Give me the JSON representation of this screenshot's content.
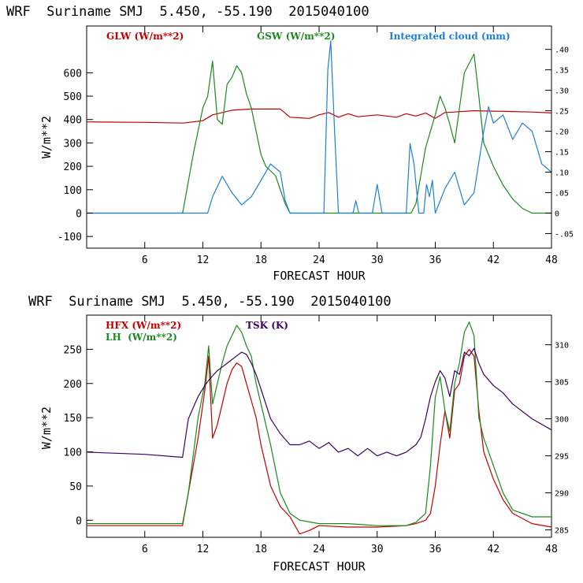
{
  "colors": {
    "red": "#c00000",
    "green": "#1a8a1a",
    "blue": "#1f7fd0",
    "purple": "#3d0060",
    "axis": "#000000"
  },
  "chart_data": [
    {
      "type": "line",
      "title": "WRF  Suriname SMJ  5.450, -55.190  2015040100",
      "xlabel": "FORECAST HOUR",
      "ylabel": "W/m**2",
      "xlim": [
        0,
        48
      ],
      "ylim": [
        -150,
        800
      ],
      "xticks": [
        6,
        12,
        18,
        24,
        30,
        36,
        42,
        48
      ],
      "yticks": [
        -100,
        0,
        100,
        200,
        300,
        400,
        500,
        600
      ],
      "y2lim": [
        -0.0857,
        0.4571
      ],
      "y2ticks": [
        -0.05,
        0,
        0.05,
        0.1,
        0.15,
        0.2,
        0.25,
        0.3,
        0.35,
        0.4
      ],
      "y2ticklabels": [
        "-.05",
        "0",
        ".05",
        ".10",
        ".15",
        ".20",
        ".25",
        ".30",
        ".35",
        ".40"
      ],
      "series": [
        {
          "name": "GLW (W/m**2)",
          "color": "red",
          "axis": "left",
          "x": [
            0,
            6,
            10,
            12,
            13,
            15,
            17,
            20,
            21,
            23,
            24,
            25,
            26,
            27,
            28,
            30,
            32,
            33,
            34,
            35,
            36,
            37,
            38,
            40,
            42,
            44,
            46,
            48
          ],
          "y": [
            390,
            388,
            385,
            395,
            420,
            440,
            445,
            445,
            410,
            405,
            420,
            430,
            410,
            425,
            412,
            420,
            410,
            425,
            415,
            428,
            405,
            430,
            432,
            438,
            436,
            434,
            432,
            428
          ]
        },
        {
          "name": "GSW (W/m**2)",
          "color": "green",
          "axis": "left",
          "x": [
            0,
            9.9,
            10,
            11,
            12,
            12.5,
            13,
            13.5,
            14,
            14.5,
            15,
            15.5,
            16,
            16.5,
            17,
            17.5,
            18,
            18.5,
            19,
            19.5,
            20,
            20.5,
            21,
            33.5,
            34,
            35,
            36,
            36.5,
            37,
            37.5,
            38,
            38.5,
            39,
            39.5,
            40,
            40.5,
            41,
            42,
            43,
            44,
            45,
            46,
            48
          ],
          "y": [
            0,
            0,
            20,
            250,
            450,
            500,
            650,
            400,
            380,
            550,
            580,
            630,
            600,
            510,
            450,
            350,
            250,
            200,
            180,
            160,
            100,
            40,
            0,
            0,
            40,
            280,
            420,
            500,
            450,
            380,
            300,
            450,
            600,
            640,
            680,
            500,
            300,
            200,
            120,
            60,
            20,
            0,
            0
          ]
        },
        {
          "name": "Integrated cloud (mm)",
          "color": "blue",
          "axis": "right",
          "x": [
            0,
            12.5,
            13,
            14,
            15,
            16,
            17,
            18,
            19,
            20,
            20.5,
            21,
            24.5,
            24.9,
            25.2,
            25.6,
            26,
            27.5,
            27.8,
            28.1,
            29.5,
            30,
            30.5,
            33,
            33.4,
            33.8,
            34.3,
            34.8,
            35.1,
            35.4,
            35.7,
            36,
            37,
            38,
            39,
            40,
            41,
            41.5,
            42,
            43,
            44,
            45,
            46,
            47,
            48
          ],
          "y": [
            0,
            0,
            0.04,
            0.09,
            0.05,
            0.02,
            0.04,
            0.08,
            0.12,
            0.1,
            0.03,
            0,
            0,
            0.35,
            0.42,
            0.2,
            0,
            0,
            0.03,
            0,
            0,
            0.07,
            0,
            0,
            0.17,
            0.12,
            0,
            0,
            0.07,
            0.04,
            0.08,
            0,
            0.06,
            0.1,
            0.02,
            0.05,
            0.2,
            0.26,
            0.22,
            0.24,
            0.18,
            0.22,
            0.2,
            0.12,
            0.1
          ]
        }
      ]
    },
    {
      "type": "line",
      "title": "WRF  Suriname SMJ  5.450, -55.190  2015040100",
      "xlabel": "FORECAST HOUR",
      "ylabel": "W/m**2",
      "xlim": [
        0,
        48
      ],
      "ylim": [
        -25,
        300
      ],
      "xticks": [
        6,
        12,
        18,
        24,
        30,
        36,
        42,
        48
      ],
      "yticks": [
        0,
        50,
        100,
        150,
        200,
        250
      ],
      "y2lim": [
        284,
        314
      ],
      "y2ticks": [
        285,
        290,
        295,
        300,
        305,
        310
      ],
      "series": [
        {
          "name": "HFX (W/m**2)",
          "color": "red",
          "axis": "left",
          "x": [
            0,
            6,
            9.9,
            10.5,
            11.5,
            12.2,
            12.6,
            13,
            13.5,
            14,
            14.5,
            15,
            15.5,
            16,
            16.5,
            17,
            17.5,
            18,
            19,
            20,
            21,
            22,
            23,
            24,
            27,
            30,
            33,
            34,
            35,
            35.5,
            36,
            36.5,
            37,
            37.5,
            38,
            38.5,
            39,
            39.5,
            40,
            40.5,
            41,
            42,
            43,
            44,
            46,
            48
          ],
          "y": [
            -8,
            -8,
            -8,
            40,
            120,
            190,
            240,
            120,
            140,
            170,
            200,
            220,
            230,
            225,
            200,
            175,
            150,
            110,
            50,
            20,
            5,
            -20,
            -15,
            -8,
            -10,
            -10,
            -8,
            -5,
            0,
            10,
            50,
            110,
            160,
            120,
            190,
            200,
            240,
            250,
            240,
            160,
            100,
            60,
            30,
            10,
            -5,
            -10
          ]
        },
        {
          "name": "LH (W/m**2)",
          "color": "green",
          "axis": "left",
          "x": [
            0,
            6,
            9.9,
            10.5,
            11.5,
            12.2,
            12.6,
            13,
            13.5,
            14,
            14.5,
            15,
            15.5,
            16,
            16.5,
            17,
            17.5,
            18,
            19,
            20,
            21,
            22,
            24,
            27,
            30,
            33,
            34,
            35,
            35.5,
            36,
            36.5,
            37,
            37.5,
            38,
            38.5,
            39,
            39.5,
            40,
            40.5,
            41,
            42,
            43,
            44,
            46,
            48
          ],
          "y": [
            -5,
            -5,
            -5,
            40,
            150,
            200,
            255,
            170,
            200,
            230,
            255,
            270,
            285,
            275,
            255,
            240,
            200,
            170,
            110,
            40,
            10,
            0,
            -5,
            -5,
            -8,
            -8,
            -3,
            10,
            80,
            180,
            210,
            160,
            130,
            200,
            230,
            275,
            290,
            270,
            150,
            120,
            80,
            40,
            15,
            5,
            5
          ]
        },
        {
          "name": "TSK (K)",
          "color": "purple",
          "axis": "right",
          "x": [
            0,
            6,
            9.9,
            10.5,
            11.5,
            12.2,
            12.6,
            13,
            13.5,
            14,
            14.5,
            15,
            15.5,
            16,
            16.5,
            17,
            17.5,
            18,
            19,
            20,
            21,
            22,
            23,
            24,
            25,
            26,
            27,
            28,
            29,
            30,
            31,
            32,
            33,
            34,
            34.5,
            35,
            35.5,
            36,
            36.5,
            37,
            37.5,
            38,
            38.5,
            39,
            39.5,
            40,
            40.5,
            41,
            42,
            43,
            44,
            46,
            48
          ],
          "y": [
            295.5,
            295.2,
            294.8,
            300,
            303,
            304.5,
            305.2,
            305.8,
            306.5,
            307,
            307.5,
            308,
            308.5,
            309,
            308.7,
            307.5,
            306,
            304,
            300,
            298,
            296.5,
            296.5,
            297,
            296,
            296.8,
            295.5,
            296,
            295,
            296,
            295,
            295.5,
            295,
            295.5,
            296.5,
            297.5,
            300,
            303,
            305,
            306.5,
            305.5,
            303,
            306.5,
            306,
            309,
            308.5,
            309.5,
            307.5,
            306,
            304.5,
            303.5,
            302,
            300,
            298.5
          ]
        }
      ]
    }
  ],
  "panels": [
    {
      "title": "WRF  Suriname SMJ  5.450, -55.190  2015040100",
      "xlabel": "FORECAST HOUR",
      "ylabel": "W/m**2",
      "xtick_labels": [
        "6",
        "12",
        "18",
        "24",
        "30",
        "36",
        "42",
        "48"
      ],
      "ytick_labels": [
        "-100",
        "0",
        "100",
        "200",
        "300",
        "400",
        "500",
        "600"
      ],
      "rtick_labels": [
        "-.05",
        "0",
        ".05",
        ".10",
        ".15",
        ".20",
        ".25",
        ".30",
        ".35",
        ".40"
      ],
      "legend": [
        "GLW (W/m**2)",
        "GSW (W/m**2)",
        "Integrated cloud (mm)"
      ]
    },
    {
      "title": "WRF  Suriname SMJ  5.450, -55.190  2015040100",
      "xlabel": "FORECAST HOUR",
      "ylabel": "W/m**2",
      "xtick_labels": [
        "6",
        "12",
        "18",
        "24",
        "30",
        "36",
        "42",
        "48"
      ],
      "ytick_labels": [
        "0",
        "50",
        "100",
        "150",
        "200",
        "250"
      ],
      "rtick_labels": [
        "285",
        "290",
        "295",
        "300",
        "305",
        "310"
      ],
      "legend": [
        "HFX (W/m**2)",
        "LH  (W/m**2)",
        "TSK (K)"
      ]
    }
  ]
}
